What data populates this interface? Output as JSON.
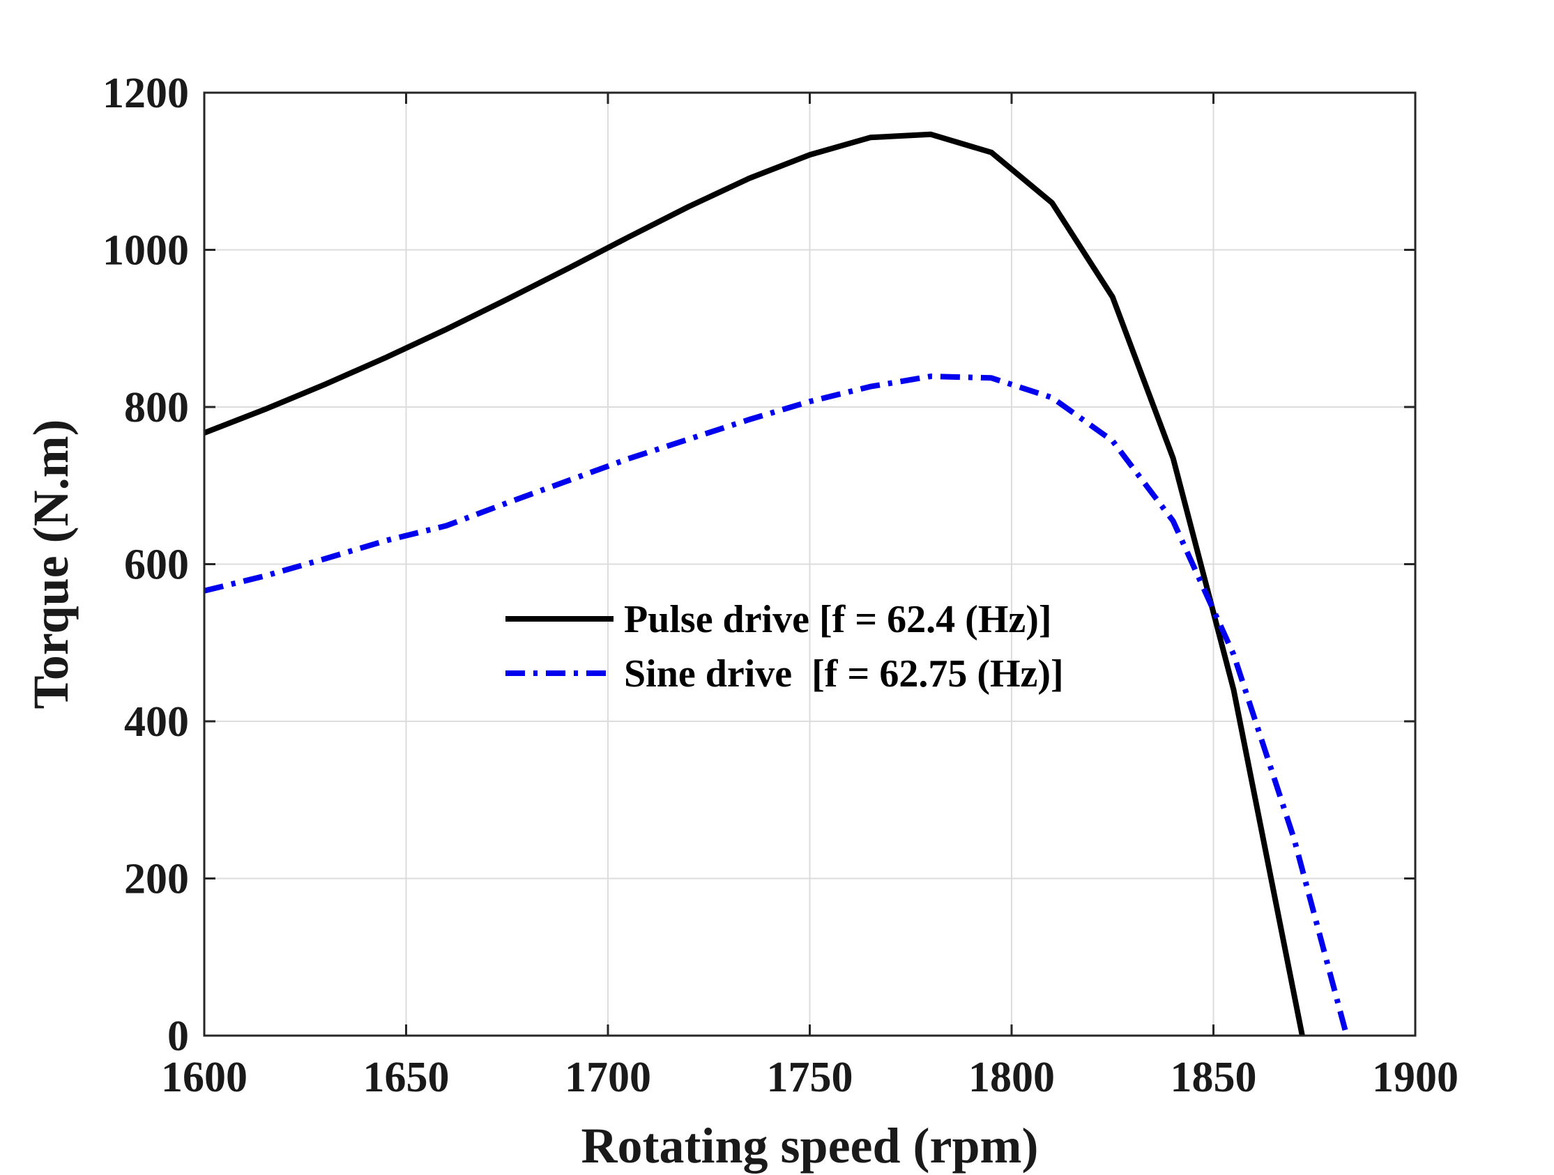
{
  "chart_data": {
    "type": "line",
    "title": "",
    "xlabel": "Rotating speed (rpm)",
    "ylabel": "Torque (N.m)",
    "xlim": [
      1600,
      1900
    ],
    "ylim": [
      0,
      1200
    ],
    "xticks": [
      "1600",
      "1650",
      "1700",
      "1750",
      "1800",
      "1850",
      "1900"
    ],
    "yticks": [
      "0",
      "200",
      "400",
      "600",
      "800",
      "1000",
      "1200"
    ],
    "grid": true,
    "legend_position": "center",
    "series": [
      {
        "name": "Pulse drive [f = 62.4 (Hz)]",
        "color": "#000000",
        "style": "solid",
        "x": [
          1600,
          1615,
          1630,
          1645,
          1660,
          1675,
          1690,
          1705,
          1720,
          1735,
          1750,
          1765,
          1780,
          1795,
          1810,
          1825,
          1840,
          1855,
          1872
        ],
        "y": [
          767,
          797,
          829,
          863,
          899,
          937,
          976,
          1016,
          1055,
          1091,
          1121,
          1143,
          1147,
          1124,
          1060,
          940,
          735,
          440,
          0
        ]
      },
      {
        "name": "Sine drive  [f = 62.75 (Hz)]",
        "color": "#0000ee",
        "style": "dashdot",
        "x": [
          1600,
          1615,
          1630,
          1645,
          1660,
          1675,
          1690,
          1705,
          1720,
          1735,
          1750,
          1765,
          1780,
          1795,
          1810,
          1825,
          1840,
          1855,
          1870,
          1883
        ],
        "y": [
          566,
          585,
          607,
          630,
          649,
          678,
          706,
          734,
          759,
          784,
          807,
          826,
          839,
          837,
          812,
          757,
          655,
          485,
          250,
          0
        ]
      }
    ]
  }
}
